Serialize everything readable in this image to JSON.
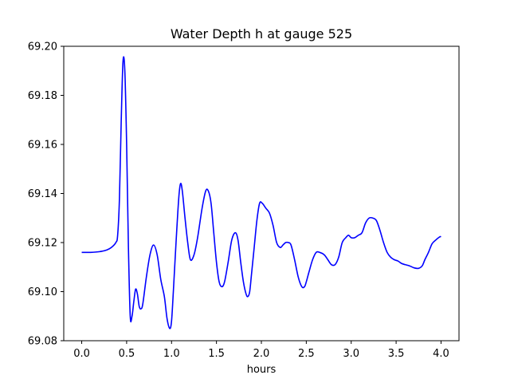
{
  "chart_data": {
    "type": "line",
    "title": "Water Depth h at gauge 525",
    "xlabel": "hours",
    "ylabel": "",
    "xlim": [
      -0.2,
      4.2
    ],
    "ylim": [
      69.08,
      69.2
    ],
    "x_ticks": [
      "0.0",
      "0.5",
      "1.0",
      "1.5",
      "2.0",
      "2.5",
      "3.0",
      "3.5",
      "4.0"
    ],
    "y_ticks": [
      "69.08",
      "69.10",
      "69.12",
      "69.14",
      "69.16",
      "69.18",
      "69.20"
    ],
    "grid": false,
    "series": [
      {
        "color": "#0000ff",
        "x": [
          0.0,
          0.1,
          0.2,
          0.28,
          0.33,
          0.38,
          0.4,
          0.42,
          0.44,
          0.46,
          0.48,
          0.5,
          0.52,
          0.54,
          0.56,
          0.58,
          0.6,
          0.62,
          0.64,
          0.66,
          0.68,
          0.72,
          0.76,
          0.8,
          0.84,
          0.88,
          0.92,
          0.95,
          0.98,
          1.0,
          1.02,
          1.05,
          1.08,
          1.1,
          1.12,
          1.15,
          1.18,
          1.21,
          1.25,
          1.29,
          1.34,
          1.38,
          1.41,
          1.44,
          1.47,
          1.5,
          1.53,
          1.56,
          1.59,
          1.63,
          1.67,
          1.71,
          1.74,
          1.77,
          1.8,
          1.83,
          1.85,
          1.87,
          1.89,
          1.92,
          1.95,
          1.98,
          2.01,
          2.05,
          2.09,
          2.13,
          2.17,
          2.21,
          2.24,
          2.27,
          2.3,
          2.33,
          2.37,
          2.41,
          2.45,
          2.48,
          2.5,
          2.53,
          2.57,
          2.61,
          2.65,
          2.7,
          2.74,
          2.78,
          2.82,
          2.86,
          2.9,
          2.94,
          2.97,
          3.0,
          3.04,
          3.08,
          3.12,
          3.16,
          3.2,
          3.24,
          3.28,
          3.32,
          3.36,
          3.4,
          3.44,
          3.48,
          3.52,
          3.56,
          3.6,
          3.65,
          3.7,
          3.75,
          3.79,
          3.82,
          3.86,
          3.9,
          3.94,
          3.98,
          4.0
        ],
        "y": [
          69.116,
          69.116,
          69.1163,
          69.117,
          69.118,
          69.12,
          69.123,
          69.138,
          69.17,
          69.194,
          69.19,
          69.16,
          69.118,
          69.09,
          69.09,
          69.096,
          69.101,
          69.099,
          69.094,
          69.093,
          69.095,
          69.106,
          69.115,
          69.119,
          69.115,
          69.105,
          69.098,
          69.089,
          69.085,
          69.088,
          69.1,
          69.12,
          69.138,
          69.144,
          69.141,
          69.13,
          69.12,
          69.113,
          69.115,
          69.122,
          69.134,
          69.141,
          69.141,
          69.136,
          69.124,
          69.112,
          69.104,
          69.102,
          69.104,
          69.112,
          69.121,
          69.124,
          69.121,
          69.112,
          69.104,
          69.099,
          69.098,
          69.1,
          69.107,
          69.118,
          69.129,
          69.136,
          69.136,
          69.134,
          69.132,
          69.127,
          69.12,
          69.118,
          69.119,
          69.12,
          69.12,
          69.119,
          69.113,
          69.106,
          69.102,
          69.102,
          69.104,
          69.108,
          69.113,
          69.116,
          69.116,
          69.115,
          69.113,
          69.111,
          69.111,
          69.114,
          69.12,
          69.122,
          69.123,
          69.122,
          69.122,
          69.123,
          69.124,
          69.128,
          69.13,
          69.13,
          69.129,
          69.125,
          69.12,
          69.116,
          69.114,
          69.113,
          69.1125,
          69.1115,
          69.111,
          69.1105,
          69.1097,
          69.1095,
          69.1105,
          69.113,
          69.116,
          69.1195,
          69.121,
          69.1222,
          69.1225
        ]
      }
    ]
  }
}
